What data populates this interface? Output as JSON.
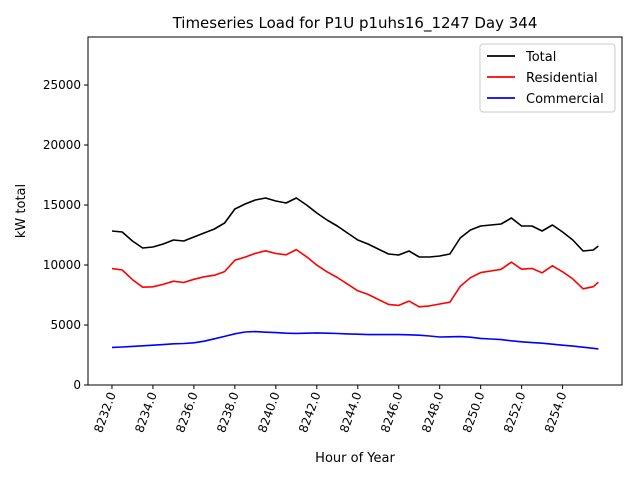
{
  "chart_data": {
    "type": "line",
    "title": "Timeseries Load for P1U p1uhs16_1247  Day 344",
    "xlabel": "Hour of Year",
    "ylabel": "kW total",
    "xlim": [
      8230.83,
      8256.9
    ],
    "ylim": [
      0,
      29000
    ],
    "xticks": [
      8232,
      8234,
      8236,
      8238,
      8240,
      8242,
      8244,
      8246,
      8248,
      8250,
      8252,
      8254
    ],
    "xtick_labels": [
      "8232.0",
      "8234.0",
      "8236.0",
      "8238.0",
      "8240.0",
      "8242.0",
      "8244.0",
      "8246.0",
      "8248.0",
      "8250.0",
      "8252.0",
      "8254.0"
    ],
    "yticks": [
      0,
      5000,
      10000,
      15000,
      20000,
      25000
    ],
    "ytick_labels": [
      "0",
      "5000",
      "10000",
      "15000",
      "20000",
      "25000"
    ],
    "grid": false,
    "legend_placement": "top-right",
    "x": [
      8232,
      8232.5,
      8233,
      8233.5,
      8234,
      8234.5,
      8235,
      8235.5,
      8236,
      8236.5,
      8237,
      8237.5,
      8238,
      8238.5,
      8239,
      8239.5,
      8240,
      8240.5,
      8241,
      8241.5,
      8242,
      8242.5,
      8243,
      8243.5,
      8244,
      8244.5,
      8245,
      8245.5,
      8246,
      8246.5,
      8247,
      8247.5,
      8248,
      8248.5,
      8249,
      8249.5,
      8250,
      8250.5,
      8251,
      8251.5,
      8252,
      8252.5,
      8253,
      8253.5,
      8254,
      8254.5,
      8255,
      8255.5,
      8255.75
    ],
    "series": [
      {
        "name": "Total",
        "color": "#000000",
        "values": [
          12830,
          12750,
          12000,
          11420,
          11500,
          11750,
          12080,
          12000,
          12330,
          12670,
          13000,
          13500,
          14670,
          15080,
          15420,
          15580,
          15330,
          15170,
          15580,
          15000,
          14330,
          13750,
          13250,
          12670,
          12080,
          11750,
          11330,
          10920,
          10830,
          11170,
          10670,
          10670,
          10750,
          10920,
          12250,
          12920,
          13250,
          13330,
          13420,
          13920,
          13250,
          13250,
          12830,
          13330,
          12750,
          12080,
          11170,
          11250,
          11580
        ]
      },
      {
        "name": "Residential",
        "color": "#ff0000",
        "values": [
          9700,
          9580,
          8780,
          8150,
          8180,
          8380,
          8650,
          8540,
          8810,
          9020,
          9150,
          9450,
          10400,
          10660,
          10970,
          11180,
          10960,
          10850,
          11280,
          10680,
          9990,
          9430,
          8960,
          8410,
          7850,
          7550,
          7130,
          6720,
          6630,
          6990,
          6520,
          6590,
          6750,
          6900,
          8220,
          8940,
          9370,
          9500,
          9640,
          10240,
          9650,
          9720,
          9350,
          9930,
          9430,
          8840,
          8020,
          8190,
          8570
        ]
      },
      {
        "name": "Commercial",
        "color": "#0000ff",
        "values": [
          3130,
          3170,
          3220,
          3270,
          3320,
          3370,
          3430,
          3460,
          3520,
          3650,
          3850,
          4050,
          4270,
          4420,
          4450,
          4400,
          4370,
          4320,
          4300,
          4320,
          4340,
          4320,
          4290,
          4260,
          4230,
          4200,
          4200,
          4200,
          4200,
          4180,
          4150,
          4080,
          4000,
          4020,
          4030,
          3980,
          3880,
          3830,
          3780,
          3680,
          3600,
          3530,
          3480,
          3400,
          3320,
          3240,
          3150,
          3060,
          3010
        ]
      }
    ]
  }
}
